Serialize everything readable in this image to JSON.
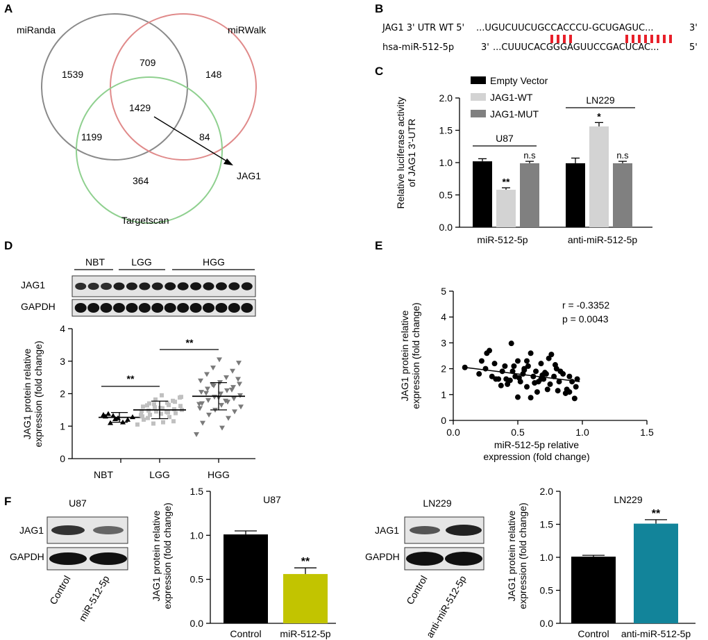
{
  "panels": {
    "A": "A",
    "B": "B",
    "C": "C",
    "D": "D",
    "E": "E",
    "F": "F"
  },
  "venn": {
    "set_labels": [
      "miRanda",
      "miRWalk",
      "Targetscan"
    ],
    "region_counts": {
      "miranda_only": "1539",
      "mirwalk_only": "148",
      "targetscan_only": "364",
      "miranda_mirwalk": "709",
      "miranda_targetscan": "1199",
      "mirwalk_targetscan": "84",
      "all_three": "1429"
    },
    "callout": "JAG1",
    "colors": {
      "miranda": "#8a8a8a",
      "mirwalk": "#e08a8a",
      "targetscan": "#8fd08f"
    }
  },
  "sequence": {
    "row1_label": "JAG1 3' UTR WT 5'",
    "row1_seq": "...UGUCUUCUGCCACCCU-GCUGAGUC...",
    "row1_end": "3'",
    "row2_label": "hsa-miR-512-5p",
    "row2_start": "3'",
    "row2_seq": "...CUUUCACGGGAGUUCCGACUCAC...",
    "row2_end": "5'",
    "pairing_color": "#e8202a"
  },
  "chart_data": [
    {
      "id": "C",
      "type": "bar",
      "ylabel": "Relative luciferase activity of JAG1 3'-UTR",
      "ylabel_lines": [
        "Relative luciferase activity",
        "of JAG1 3'-UTR"
      ],
      "ylim": [
        0,
        2.0
      ],
      "yticks": [
        "0.0",
        "0.5",
        "1.0",
        "1.5",
        "2.0"
      ],
      "categories": [
        "miR-512-5p",
        "anti-miR-512-5p"
      ],
      "cell_lines": [
        "U87",
        "LN229"
      ],
      "series": [
        {
          "name": "Empty Vector",
          "color": "#000000",
          "values": [
            1.02,
            0.99
          ],
          "errors": [
            0.04,
            0.08
          ]
        },
        {
          "name": "JAG1-WT",
          "color": "#d3d3d3",
          "values": [
            0.58,
            1.56
          ],
          "errors": [
            0.03,
            0.06
          ]
        },
        {
          "name": "JAG1-MUT",
          "color": "#808080",
          "values": [
            0.99,
            0.99
          ],
          "errors": [
            0.03,
            0.03
          ]
        }
      ],
      "annotations": [
        [
          "**",
          "n.s"
        ],
        [
          "*",
          "n.s"
        ]
      ]
    },
    {
      "id": "D",
      "type": "scatter",
      "blot_groups": [
        "NBT",
        "LGG",
        "HGG"
      ],
      "blot_rows": [
        "JAG1",
        "GAPDH"
      ],
      "ylabel": "JAG1 protein relative expression (fold change)",
      "ylabel_lines": [
        "JAG1 protein relative",
        "expression (fold change)"
      ],
      "ylim": [
        0,
        4
      ],
      "yticks": [
        "0",
        "1",
        "2",
        "3",
        "4"
      ],
      "categories": [
        "NBT",
        "LGG",
        "HGG"
      ],
      "means": [
        1.27,
        1.5,
        1.92
      ],
      "sd": [
        0.15,
        0.27,
        0.42
      ],
      "colors": [
        "#000000",
        "#c0c0c0",
        "#7a7a7a"
      ],
      "points": [
        [
          1.35,
          1.38,
          1.32,
          1.25,
          1.12,
          1.2,
          1.28,
          1.3,
          1.1,
          1.22
        ],
        [
          1.05,
          1.12,
          1.2,
          1.28,
          1.35,
          1.4,
          1.45,
          1.5,
          1.55,
          1.6,
          1.65,
          1.7,
          1.75,
          1.82,
          1.9,
          1.95,
          1.3,
          1.42,
          1.48,
          1.52,
          1.58,
          1.62,
          1.38,
          1.46,
          1.72,
          1.25,
          1.15,
          1.68,
          1.88,
          1.56,
          1.34,
          1.44,
          1.64,
          1.78,
          1.08
        ],
        [
          0.75,
          0.95,
          1.1,
          1.25,
          1.35,
          1.45,
          1.5,
          1.6,
          1.65,
          1.7,
          1.75,
          1.8,
          1.85,
          1.9,
          1.95,
          2.0,
          2.05,
          2.1,
          2.15,
          2.2,
          2.25,
          2.3,
          2.35,
          2.4,
          2.5,
          2.6,
          2.7,
          2.8,
          2.95,
          3.05,
          1.55,
          1.78,
          2.02,
          2.12,
          2.28,
          2.45,
          1.88,
          1.68
        ]
      ],
      "significance": [
        {
          "between": [
            "NBT",
            "LGG"
          ],
          "label": "**"
        },
        {
          "between": [
            "LGG",
            "HGG"
          ],
          "label": "**"
        }
      ]
    },
    {
      "id": "E",
      "type": "scatter",
      "xlabel": "miR-512-5p relative expression (fold change)",
      "xlabel_lines": [
        "miR-512-5p relative",
        "expression (fold change)"
      ],
      "ylabel": "JAG1 protein relative expression (fold change)",
      "ylabel_lines": [
        "JAG1 protein relative",
        "expression (fold change)"
      ],
      "xlim": [
        0,
        1.5
      ],
      "ylim": [
        0,
        5
      ],
      "xticks": [
        "0.0",
        "0.5",
        "1.0",
        "1.5"
      ],
      "yticks": [
        "0",
        "1",
        "2",
        "3",
        "4",
        "5"
      ],
      "stats": {
        "r": "r = -0.3352",
        "p": "p = 0.0043"
      },
      "fit": {
        "x": [
          0.09,
          0.98
        ],
        "y": [
          2.05,
          1.5
        ]
      },
      "x": [
        0.09,
        0.2,
        0.22,
        0.26,
        0.3,
        0.32,
        0.35,
        0.38,
        0.4,
        0.42,
        0.45,
        0.46,
        0.48,
        0.5,
        0.52,
        0.54,
        0.55,
        0.57,
        0.6,
        0.62,
        0.64,
        0.65,
        0.68,
        0.7,
        0.72,
        0.74,
        0.75,
        0.78,
        0.8,
        0.82,
        0.85,
        0.88,
        0.9,
        0.92,
        0.95,
        0.96,
        0.28,
        0.41,
        0.5,
        0.58,
        0.66,
        0.73,
        0.83,
        0.47,
        0.6,
        0.69,
        0.79,
        0.87,
        0.33,
        0.44,
        0.55,
        0.63,
        0.76,
        0.9,
        0.37,
        0.51,
        0.71,
        0.94,
        0.25,
        0.57,
        0.81,
        0.68
      ],
      "y": [
        2.05,
        1.8,
        2.3,
        2.6,
        1.7,
        2.2,
        1.6,
        1.9,
        2.1,
        1.4,
        2.98,
        1.9,
        1.7,
        2.3,
        1.5,
        1.8,
        2.0,
        1.3,
        2.6,
        1.7,
        1.9,
        1.1,
        2.2,
        1.6,
        1.8,
        2.4,
        1.4,
        1.7,
        2.0,
        1.5,
        1.8,
        1.2,
        1.7,
        1.5,
        1.3,
        1.6,
        2.7,
        1.6,
        0.9,
        2.1,
        1.5,
        1.2,
        1.9,
        2.1,
        0.88,
        1.75,
        2.15,
        1.05,
        1.6,
        1.55,
        1.95,
        1.45,
        2.55,
        1.1,
        1.35,
        1.65,
        1.85,
        0.85,
        2.0,
        2.3,
        1.15,
        1.6
      ]
    },
    {
      "id": "F-U87",
      "type": "bar",
      "title": "U87",
      "blot_rows": [
        "JAG1",
        "GAPDH"
      ],
      "blot_lanes": [
        "Control",
        "miR-512-5p"
      ],
      "ylabel": "JAG1 protein relative expression (fold change)",
      "ylabel_lines": [
        "JAG1 protein relative",
        "expression (fold change)"
      ],
      "ylim": [
        0,
        1.5
      ],
      "yticks": [
        "0.0",
        "0.5",
        "1.0",
        "1.5"
      ],
      "categories": [
        "Control",
        "miR-512-5p"
      ],
      "values": [
        1.01,
        0.56
      ],
      "errors": [
        0.04,
        0.07
      ],
      "colors": [
        "#000000",
        "#c2c400"
      ],
      "annotations": [
        "",
        "**"
      ]
    },
    {
      "id": "F-LN229",
      "type": "bar",
      "title": "LN229",
      "blot_rows": [
        "JAG1",
        "GAPDH"
      ],
      "blot_lanes": [
        "Control",
        "anti-miR-512-5p"
      ],
      "ylabel": "JAG1 protein relative expression (fold change)",
      "ylabel_lines": [
        "JAG1 protein relative",
        "expression (fold change)"
      ],
      "ylim": [
        0,
        2.0
      ],
      "yticks": [
        "0.0",
        "0.5",
        "1.0",
        "1.5",
        "2.0"
      ],
      "categories": [
        "Control",
        "anti-miR-512-5p"
      ],
      "values": [
        1.01,
        1.51
      ],
      "errors": [
        0.02,
        0.06
      ],
      "colors": [
        "#000000",
        "#12849a"
      ],
      "annotations": [
        "",
        "**"
      ]
    }
  ]
}
